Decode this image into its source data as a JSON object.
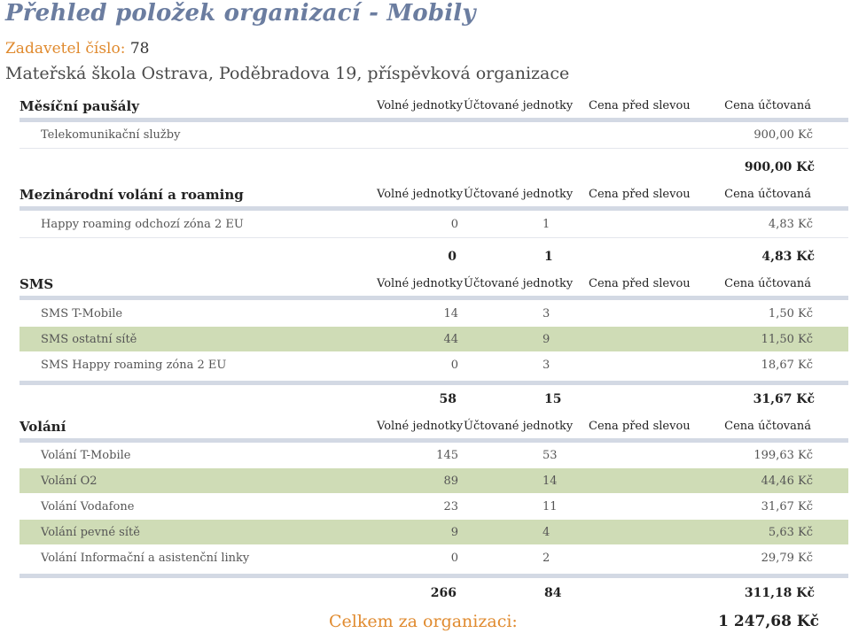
{
  "title": "Přehled položek organizací - Mobily",
  "submitter": {
    "label": "Zadavetel číslo:",
    "number": "78"
  },
  "organization": "Mateřská škola Ostrava, Poděbradova 19, příspěvková organizace",
  "columns": {
    "free": "Volné jednotky",
    "billed": "Účtované jednotky",
    "price_before": "Cena před slevou",
    "price_billed": "Cena účtovaná"
  },
  "sections": [
    {
      "name": "Měsíční paušály",
      "rows": [
        {
          "name": "Telekomunikační služby",
          "free": "",
          "billed": "",
          "price": "900,00 Kč"
        }
      ],
      "total": {
        "free": "",
        "billed": "",
        "price": "900,00 Kč"
      }
    },
    {
      "name": "Mezinárodní volání a roaming",
      "rows": [
        {
          "name": "Happy roaming odchozí zóna 2 EU",
          "free": "0",
          "billed": "1",
          "price": "4,83 Kč"
        }
      ],
      "total": {
        "free": "0",
        "billed": "1",
        "price": "4,83 Kč"
      }
    },
    {
      "name": "SMS",
      "rows": [
        {
          "name": "SMS T-Mobile",
          "free": "14",
          "billed": "3",
          "price": "1,50 Kč"
        },
        {
          "name": "SMS ostatní sítě",
          "free": "44",
          "billed": "9",
          "price": "11,50 Kč"
        },
        {
          "name": "SMS Happy roaming zóna 2 EU",
          "free": "0",
          "billed": "3",
          "price": "18,67 Kč"
        }
      ],
      "total": {
        "free": "58",
        "billed": "15",
        "price": "31,67 Kč"
      }
    },
    {
      "name": "Volání",
      "rows": [
        {
          "name": "Volání T-Mobile",
          "free": "145",
          "billed": "53",
          "price": "199,63 Kč"
        },
        {
          "name": "Volání O2",
          "free": "89",
          "billed": "14",
          "price": "44,46 Kč"
        },
        {
          "name": "Volání Vodafone",
          "free": "23",
          "billed": "11",
          "price": "31,67 Kč"
        },
        {
          "name": "Volání pevné sítě",
          "free": "9",
          "billed": "4",
          "price": "5,63 Kč"
        },
        {
          "name": "Volání Informační a asistenční linky",
          "free": "0",
          "billed": "2",
          "price": "29,79 Kč"
        }
      ],
      "total": {
        "free": "266",
        "billed": "84",
        "price": "311,18 Kč"
      }
    }
  ],
  "grand_total": {
    "label": "Celkem za organizaci:",
    "value": "1 247,68 Kč"
  }
}
